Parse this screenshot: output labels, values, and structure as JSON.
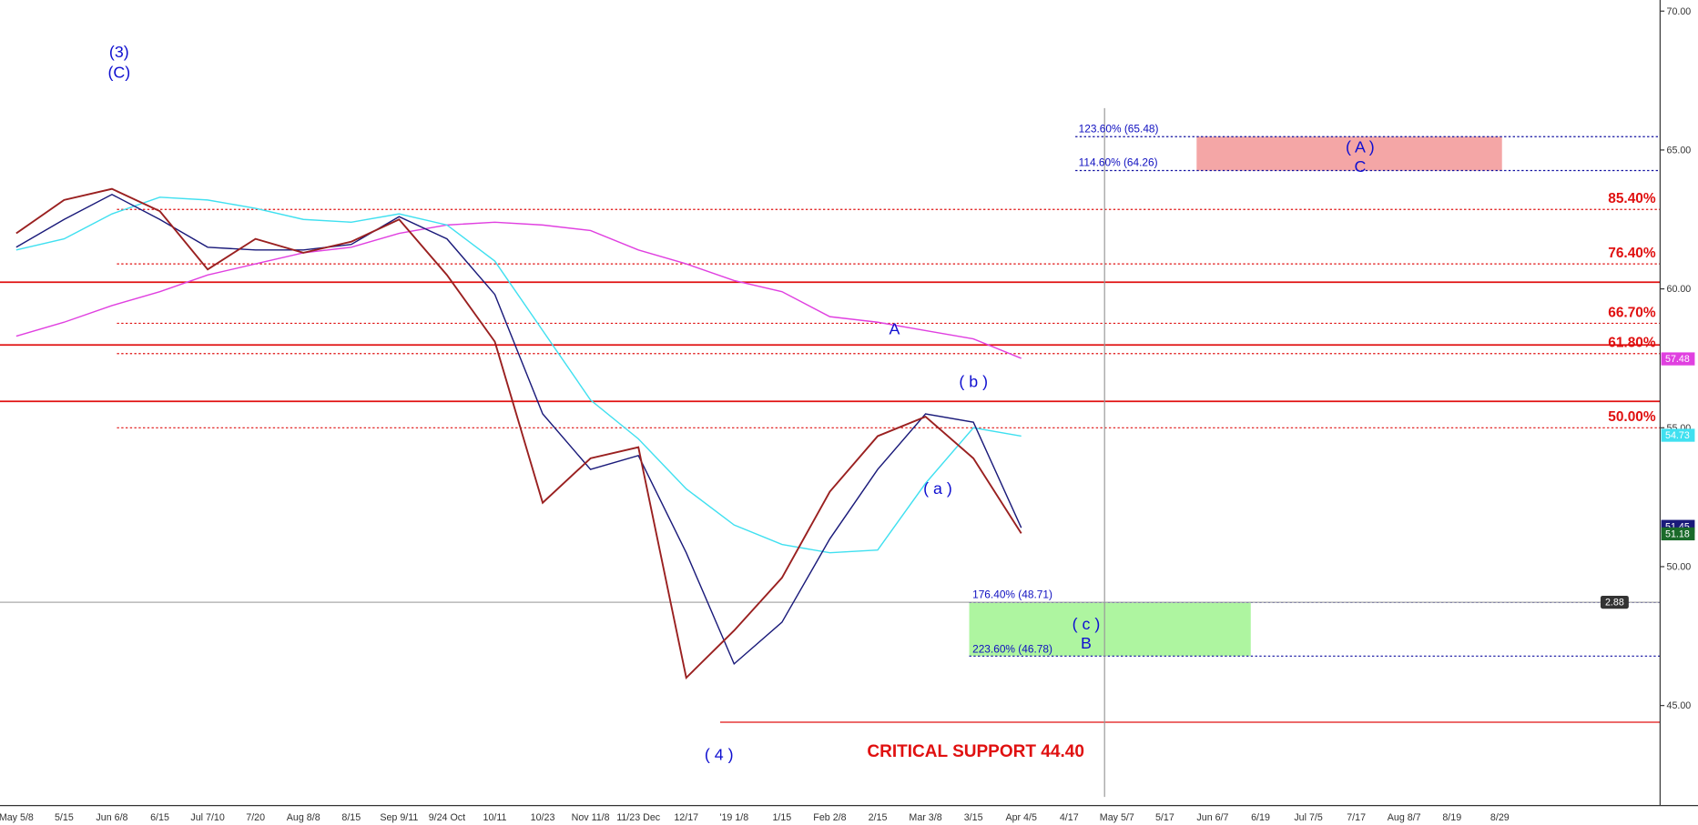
{
  "chart_data": {
    "type": "line",
    "categories": [
      "May 5/8",
      "5/15",
      "Jun 6/8",
      "6/15",
      "Jul 7/10",
      "7/20",
      "Aug 8/8",
      "8/15",
      "Sep 9/11",
      "9/24 Oct",
      "10/11",
      "10/23",
      "Nov 11/8",
      "11/23 Dec",
      "12/17",
      "'19 1/8",
      "1/15",
      "Feb 2/8",
      "2/15",
      "Mar 3/8",
      "3/15",
      "Apr 4/5",
      "4/17",
      "May 5/7",
      "5/17",
      "Jun 6/7",
      "6/19",
      "Jul 7/5",
      "7/17",
      "Aug 8/7",
      "8/19",
      "8/29"
    ],
    "series": [
      {
        "color": "#e040e0",
        "values": [
          58.3,
          58.8,
          59.4,
          59.9,
          60.5,
          60.9,
          61.3,
          61.5,
          62.0,
          62.3,
          62.4,
          62.3,
          62.1,
          61.4,
          60.9,
          60.3,
          59.9,
          59.0,
          58.8,
          58.5,
          58.2,
          57.5,
          null,
          null,
          null,
          null,
          null,
          null,
          null,
          null,
          null,
          null
        ]
      },
      {
        "color": "#40e0f0",
        "values": [
          61.4,
          61.8,
          62.7,
          63.3,
          63.2,
          62.9,
          62.5,
          62.4,
          62.7,
          62.3,
          61.0,
          58.5,
          56.0,
          54.6,
          52.8,
          51.5,
          50.8,
          50.5,
          50.6,
          53.0,
          55.0,
          54.7,
          null,
          null,
          null,
          null,
          null,
          null,
          null,
          null,
          null,
          null
        ]
      },
      {
        "color": "#1a1a7a",
        "values": [
          61.5,
          62.5,
          63.4,
          62.5,
          61.5,
          61.4,
          61.4,
          61.6,
          62.6,
          61.8,
          59.8,
          55.5,
          53.5,
          54.0,
          50.5,
          46.5,
          48.0,
          51.0,
          53.5,
          55.5,
          55.2,
          51.4,
          null,
          null,
          null,
          null,
          null,
          null,
          null,
          null,
          null,
          null
        ]
      },
      {
        "color": "#9a2020",
        "values": [
          62.0,
          63.2,
          63.6,
          62.8,
          60.7,
          61.8,
          61.3,
          61.7,
          62.5,
          60.5,
          58.1,
          52.3,
          53.9,
          54.3,
          46.0,
          47.7,
          49.6,
          52.7,
          54.7,
          55.4,
          53.9,
          51.2,
          null,
          null,
          null,
          null,
          null,
          null,
          null,
          null,
          null,
          null
        ]
      }
    ],
    "ylim": [
      41.4,
      70.4
    ],
    "yticks": [
      {
        "value": 45,
        "label": "45.00"
      },
      {
        "value": 50,
        "label": "50.00"
      },
      {
        "value": 55,
        "label": "55.00"
      },
      {
        "value": 60,
        "label": "60.00"
      },
      {
        "value": 65,
        "label": "65.00"
      },
      {
        "value": 70,
        "label": "70.00"
      }
    ],
    "resistance_lines": [
      60.24,
      57.98,
      55.95
    ],
    "fib_levels": [
      {
        "value": 62.86,
        "label": "85.40%"
      },
      {
        "value": 60.9,
        "label": "76.40%"
      },
      {
        "value": 58.76,
        "label": "66.70%"
      },
      {
        "value": 57.67,
        "label": "61.80%"
      },
      {
        "value": 55.0,
        "label": "50.00%"
      }
    ],
    "projections": [
      {
        "value": 65.48,
        "label": "123.60% (65.48)"
      },
      {
        "value": 64.26,
        "label": "114.60% (64.26)"
      },
      {
        "value": 48.71,
        "label": "176.40% (48.71)"
      },
      {
        "value": 46.78,
        "label": "223.60% (46.78)"
      }
    ],
    "support_level": 44.4,
    "price_tags": [
      {
        "value": 57.48,
        "color": "#e040e0"
      },
      {
        "value": 54.73,
        "color": "#40e0f0"
      },
      {
        "value": 51.45,
        "color": "#1a1a7a"
      },
      {
        "value": 51.18,
        "color": "#1a6a2a"
      }
    ],
    "indicator_tag": 2.88,
    "annotations": [
      "(3)",
      "(C)",
      "A",
      "( b )",
      "( a )",
      "( 4 )",
      "( A )",
      "C",
      "( c )",
      "B",
      "CRITICAL SUPPORT 44.40"
    ]
  }
}
